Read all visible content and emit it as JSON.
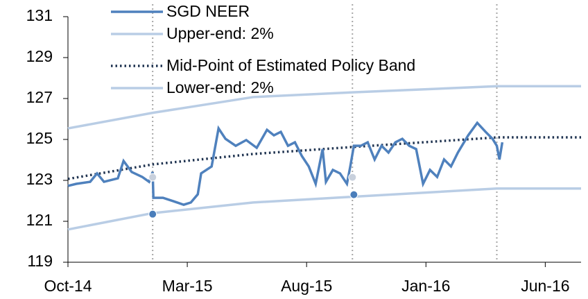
{
  "chart_data": {
    "type": "line",
    "xlim": [
      0,
      21.5
    ],
    "xticks": [
      {
        "value": 0,
        "label": "Oct-14"
      },
      {
        "value": 5,
        "label": "Mar-15"
      },
      {
        "value": 10,
        "label": "Aug-15"
      },
      {
        "value": 15,
        "label": "Jan-16"
      },
      {
        "value": 20,
        "label": "Jun-16"
      }
    ],
    "ylim": [
      119,
      131
    ],
    "yticks": [
      119,
      121,
      123,
      125,
      127,
      129,
      131
    ],
    "vlines": [
      3.55,
      11.92,
      17.97
    ],
    "vline_color": "#a6a6a6",
    "series": [
      {
        "name": "SGD NEER",
        "color": "#4f81bd",
        "dash": "solid",
        "x": [
          0,
          0.35,
          0.93,
          1.22,
          1.51,
          2.09,
          2.33,
          2.67,
          3.11,
          3.4,
          3.55,
          3.58,
          3.98,
          4.42,
          4.85,
          5.15,
          5.44,
          5.58,
          6.02,
          6.31,
          6.6,
          7.03,
          7.47,
          7.91,
          8.34,
          8.63,
          8.92,
          9.22,
          9.51,
          9.8,
          10.09,
          10.38,
          10.67,
          10.81,
          11.1,
          11.4,
          11.69,
          11.83,
          11.98,
          12.27,
          12.56,
          12.85,
          13.14,
          13.43,
          13.72,
          14.01,
          14.3,
          14.59,
          14.88,
          15.17,
          15.47,
          15.76,
          16.05,
          16.34,
          16.77,
          17.15,
          17.5,
          17.79,
          17.97,
          18.08,
          18.2
        ],
        "values": [
          122.73,
          122.83,
          122.93,
          123.34,
          122.93,
          123.1,
          123.95,
          123.41,
          123.17,
          122.93,
          123.41,
          122.15,
          122.15,
          121.98,
          121.81,
          121.92,
          122.32,
          123.34,
          123.68,
          125.54,
          125.03,
          124.69,
          124.97,
          124.59,
          125.47,
          125.2,
          125.37,
          124.69,
          124.86,
          124.19,
          123.68,
          122.83,
          124.53,
          122.93,
          123.51,
          123.34,
          122.83,
          123.68,
          124.69,
          124.69,
          124.86,
          124.02,
          124.69,
          124.36,
          124.86,
          125.03,
          124.69,
          124.53,
          122.83,
          123.51,
          123.17,
          124.02,
          123.68,
          124.36,
          125.2,
          125.81,
          125.37,
          125.03,
          124.69,
          124.02,
          124.86
        ]
      },
      {
        "name": "Upper-end: 2%",
        "color": "#b9cde5",
        "dash": "solid",
        "x": [
          0,
          3.55,
          7.76,
          11.92,
          17.97,
          21.5
        ],
        "values": [
          125.54,
          126.3,
          127.07,
          127.3,
          127.6,
          127.6
        ]
      },
      {
        "name": "Mid-Point of Estimated Policy Band",
        "color": "#1f3350",
        "dash": "dotted",
        "x": [
          0,
          3.55,
          7.76,
          11.92,
          17.97,
          21.5
        ],
        "values": [
          123.07,
          123.78,
          124.29,
          124.63,
          125.1,
          125.1
        ]
      },
      {
        "name": "Lower-end: 2%",
        "color": "#b9cde5",
        "dash": "solid",
        "x": [
          0,
          3.55,
          7.76,
          11.92,
          17.97,
          21.5
        ],
        "values": [
          120.6,
          121.4,
          121.92,
          122.2,
          122.6,
          122.6
        ]
      }
    ],
    "markers": [
      {
        "x": 3.55,
        "y": 123.15,
        "color": "#c8d0dc"
      },
      {
        "x": 3.55,
        "y": 121.35,
        "color": "#4a7ebb"
      },
      {
        "x": 11.92,
        "y": 123.15,
        "color": "#c8d0dc"
      },
      {
        "x": 11.98,
        "y": 122.3,
        "color": "#4a7ebb"
      }
    ]
  }
}
